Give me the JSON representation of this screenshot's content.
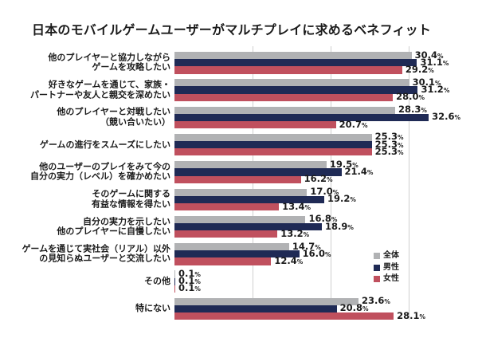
{
  "title": "日本のモバイルゲームユーザーがマルチプレイに求めるベネフィット",
  "colors": {
    "background": "#ffffff",
    "text": "#1b1b1b",
    "gridline": "#cfcfcf",
    "overall": "#b1b2b4",
    "male": "#1f2a55",
    "female": "#c0505e"
  },
  "legend": {
    "items": [
      {
        "key": "overall",
        "label": "全体",
        "color": "#b1b2b4"
      },
      {
        "key": "male",
        "label": "男性",
        "color": "#1f2a55"
      },
      {
        "key": "female",
        "label": "女性",
        "color": "#c0505e"
      }
    ]
  },
  "chart_data": {
    "type": "bar",
    "orientation": "horizontal",
    "title": "日本のモバイルゲームユーザーがマルチプレイに求めるベネフィット",
    "unit": "%",
    "xlim": [
      0,
      35
    ],
    "gridlines_percent": [
      10,
      20,
      30
    ],
    "grid": true,
    "legend_position": "right-lower",
    "categories": [
      "他のプレイヤーと協力しながらゲームを攻略したい",
      "好きなゲームを通じて、家族・パートナーや友人と親交を深めたい",
      "他のプレイヤーと対戦したい（競い合いたい）",
      "ゲームの進行をスムーズにしたい",
      "他のユーザーのプレイをみて今の自分の実力（レベル）を確かめたい",
      "そのゲームに関する有益な情報を得たい",
      "自分の実力を示したい他のプレイヤーに自慢したい",
      "ゲームを通じて実社会（リアル）以外の見知らぬユーザーと交流したい",
      "その他",
      "特にない"
    ],
    "category_label_lines": [
      [
        "他のプレイヤーと協力しながら",
        "ゲームを攻略したい"
      ],
      [
        "好きなゲームを通じて、家族・",
        "パートナーや友人と親交を深めたい"
      ],
      [
        "他のプレイヤーと対戦したい",
        "（競い合いたい）"
      ],
      [
        "ゲームの進行をスムーズにしたい"
      ],
      [
        "他のユーザーのプレイをみて今の",
        "自分の実力（レベル）を確かめたい"
      ],
      [
        "そのゲームに関する",
        "有益な情報を得たい"
      ],
      [
        "自分の実力を示したい",
        "他のプレイヤーに自慢したい"
      ],
      [
        "ゲームを通じて実社会（リアル）以外",
        "の見知らぬユーザーと交流したい"
      ],
      [
        "その他"
      ],
      [
        "特にない"
      ]
    ],
    "series": [
      {
        "key": "overall",
        "name": "全体",
        "color": "#b1b2b4",
        "values": [
          30.4,
          30.1,
          28.3,
          25.3,
          19.5,
          17.0,
          16.8,
          14.7,
          0.1,
          23.6
        ]
      },
      {
        "key": "male",
        "name": "男性",
        "color": "#1f2a55",
        "values": [
          31.1,
          31.2,
          32.6,
          25.3,
          21.4,
          19.2,
          18.9,
          16.0,
          0.1,
          20.8
        ]
      },
      {
        "key": "female",
        "name": "女性",
        "color": "#c0505e",
        "values": [
          29.2,
          28.0,
          20.7,
          25.3,
          16.2,
          13.4,
          13.2,
          12.4,
          0.1,
          28.1
        ]
      }
    ]
  }
}
